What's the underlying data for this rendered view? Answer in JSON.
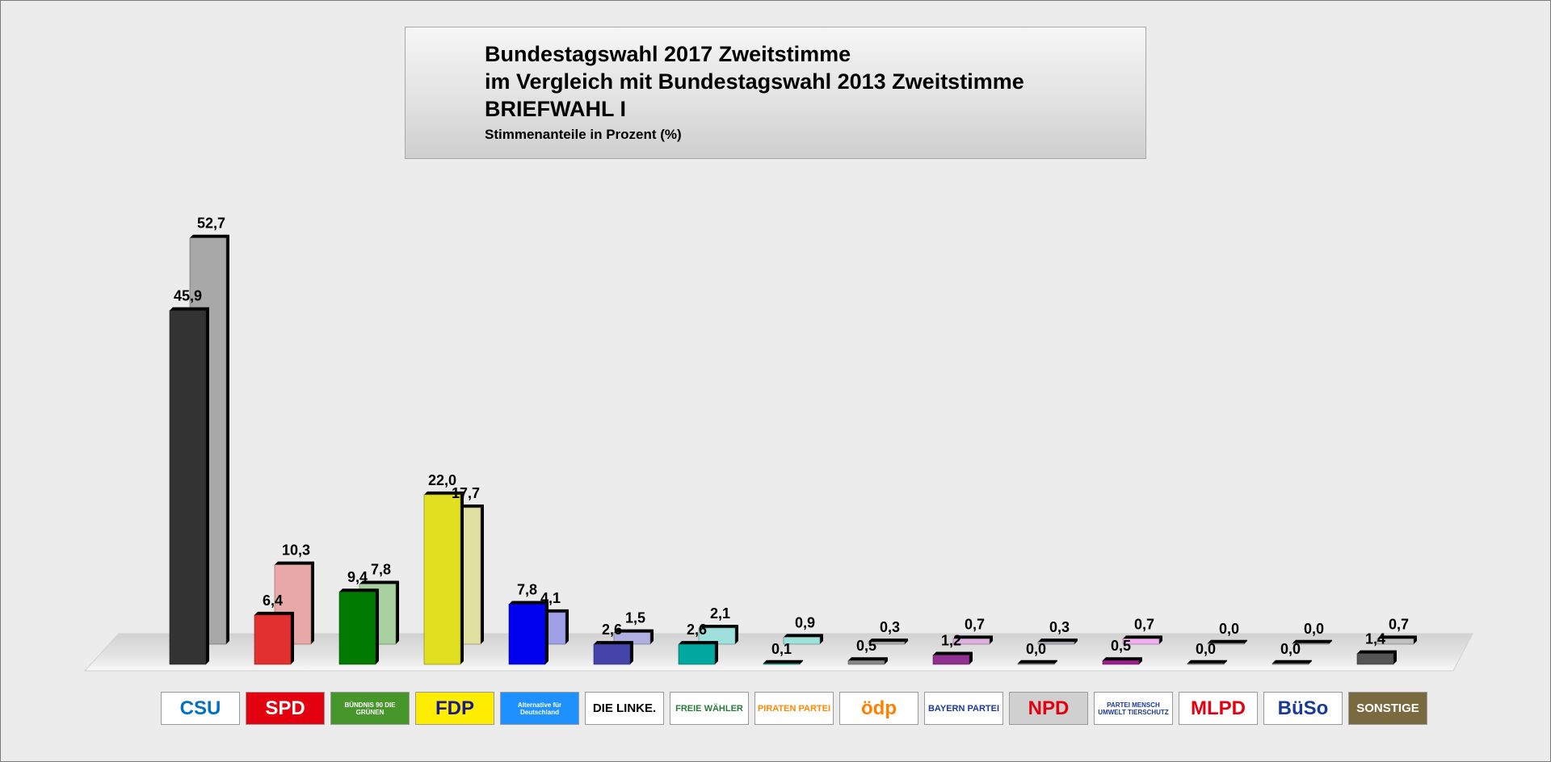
{
  "title": {
    "line1": "Bundestagswahl 2017 Zweitstimme",
    "line2": "im Vergleich mit Bundestagswahl 2013 Zweitstimme",
    "line3": "BRIEFWAHL I",
    "subtitle": "Stimmenanteile in Prozent (%)"
  },
  "chart_data": {
    "type": "bar",
    "title": "Bundestagswahl 2017 Zweitstimme im Vergleich mit Bundestagswahl 2013 Zweitstimme BRIEFWAHL I",
    "subtitle": "Stimmenanteile in Prozent (%)",
    "categories": [
      "CSU",
      "SPD",
      "BÜNDNIS 90 DIE GRÜNEN",
      "FDP",
      "Alternative für Deutschland",
      "DIE LINKE.",
      "FREIE WÄHLER",
      "PIRATEN PARTEI",
      "ödp",
      "BAYERN PARTEI",
      "NPD",
      "PARTEI MENSCH UMWELT TIERSCHUTZ",
      "MLPD",
      "BüSo",
      "SONSTIGE"
    ],
    "ylim": [
      0,
      55
    ],
    "grid": false,
    "legend": "none",
    "series": [
      {
        "values": [
          45.9,
          6.4,
          9.4,
          22.0,
          7.8,
          2.6,
          2.6,
          0.1,
          0.5,
          1.2,
          0.0,
          0.5,
          0.0,
          0.0,
          1.4
        ],
        "labels": [
          "45,9",
          "6,4",
          "9,4",
          "22,0",
          "7,8",
          "2,6",
          "2,6",
          "0,1",
          "0,5",
          "1,2",
          "0,0",
          "0,5",
          "0,0",
          "0,0",
          "1,4"
        ],
        "colors": [
          "#333333",
          "#e03030",
          "#007a00",
          "#e0e020",
          "#0000ee",
          "#4444aa",
          "#00a8a0",
          "#20a090",
          "#888888",
          "#903090",
          "#888888",
          "#a02090",
          "#888888",
          "#888888",
          "#555555"
        ]
      },
      {
        "values": [
          52.7,
          10.3,
          7.8,
          17.7,
          4.1,
          1.5,
          2.1,
          0.9,
          0.3,
          0.7,
          0.3,
          0.7,
          0.0,
          0.0,
          0.7
        ],
        "labels": [
          "52,7",
          "10,3",
          "7,8",
          "17,7",
          "4,1",
          "1,5",
          "2,1",
          "0,9",
          "0,3",
          "0,7",
          "0,3",
          "0,7",
          "0,0",
          "0,0",
          "0,7"
        ],
        "colors": [
          "#a8a8a8",
          "#e8a8a8",
          "#a8d0a0",
          "#e0e0a0",
          "#a0a0e8",
          "#b0b0e0",
          "#a0e0dc",
          "#a0e0dc",
          "#b0b0b0",
          "#e0b0e0",
          "#b0b0c0",
          "#f0b0f0",
          "#b0b0b0",
          "#b0b0b0",
          "#c0c0c0"
        ]
      }
    ]
  },
  "logos": [
    {
      "text": "CSU",
      "bg": "#ffffff",
      "fg": "#0070c0"
    },
    {
      "text": "SPD",
      "bg": "#e3000f",
      "fg": "#ffffff"
    },
    {
      "text": "BÜNDNIS 90 DIE GRÜNEN",
      "bg": "#46962b",
      "fg": "#ffffff"
    },
    {
      "text": "FDP",
      "bg": "#ffed00",
      "fg": "#1a1a8c"
    },
    {
      "text": "Alternative für Deutschland",
      "bg": "#1e90ff",
      "fg": "#ffffff"
    },
    {
      "text": "DIE LINKE.",
      "bg": "#ffffff",
      "fg": "#000000"
    },
    {
      "text": "FREIE WÄHLER",
      "bg": "#ffffff",
      "fg": "#2a7a3a"
    },
    {
      "text": "PIRATEN PARTEI",
      "bg": "#ffffff",
      "fg": "#ff8800"
    },
    {
      "text": "ödp",
      "bg": "#ffffff",
      "fg": "#ff7f00"
    },
    {
      "text": "BAYERN PARTEI",
      "bg": "#ffffff",
      "fg": "#1a3a9a"
    },
    {
      "text": "NPD",
      "bg": "#d0d0d0",
      "fg": "#e3000f"
    },
    {
      "text": "PARTEI MENSCH UMWELT TIERSCHUTZ",
      "bg": "#ffffff",
      "fg": "#1a3a9a"
    },
    {
      "text": "MLPD",
      "bg": "#ffffff",
      "fg": "#e3000f"
    },
    {
      "text": "BüSo",
      "bg": "#ffffff",
      "fg": "#1a3a9a"
    },
    {
      "text": "SONSTIGE",
      "bg": "#7a6a40",
      "fg": "#ffffff"
    }
  ]
}
